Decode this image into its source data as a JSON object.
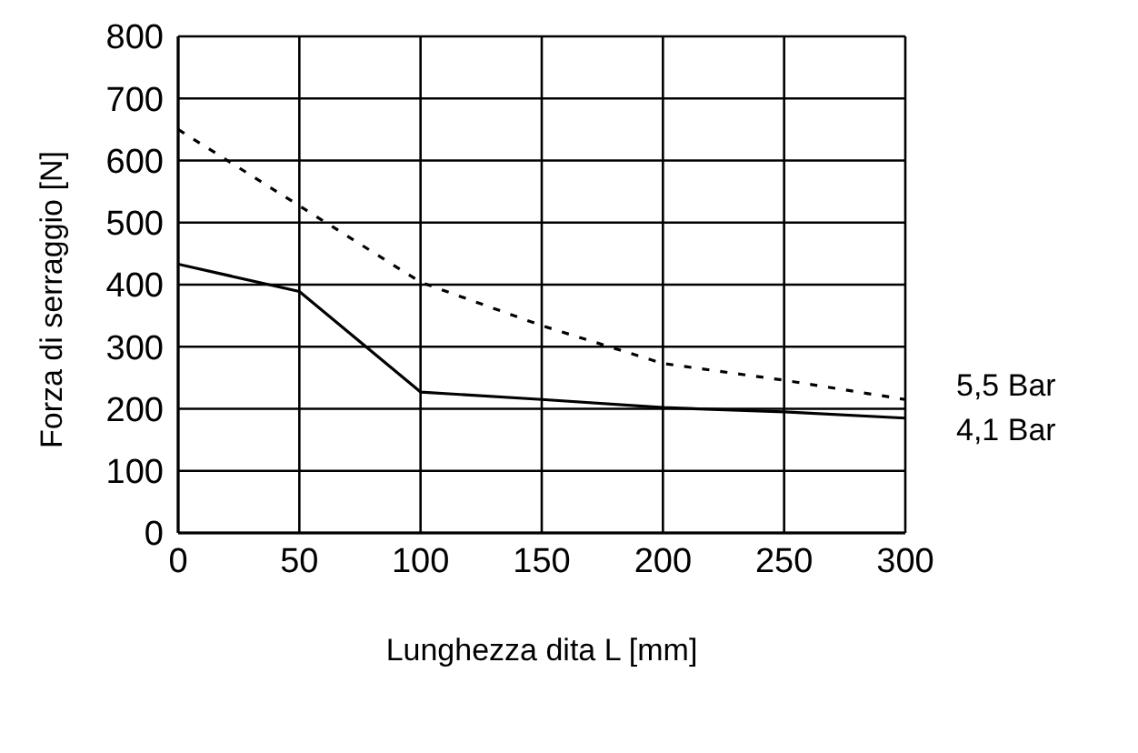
{
  "chart_data": {
    "type": "line",
    "xlabel": "Lunghezza dita L [mm]",
    "ylabel": "Forza di serraggio [N]",
    "x": [
      0,
      50,
      100,
      150,
      200,
      250,
      300
    ],
    "series": [
      {
        "name": "5,5 Bar",
        "color": "#000000",
        "line_style": "dashed",
        "values": [
          650,
          527,
          404,
          334,
          273,
          246,
          215
        ]
      },
      {
        "name": "4,1 Bar",
        "color": "#000000",
        "line_style": "solid",
        "values": [
          433,
          389,
          227,
          215,
          202,
          195,
          185
        ]
      }
    ],
    "xlim": [
      0,
      300
    ],
    "xticks": [
      0,
      50,
      100,
      150,
      200,
      250,
      300
    ],
    "ylim": [
      0,
      800
    ],
    "yticks": [
      0,
      100,
      200,
      300,
      400,
      500,
      600,
      700,
      800
    ],
    "grid": true,
    "legend": false,
    "marker": "none"
  }
}
